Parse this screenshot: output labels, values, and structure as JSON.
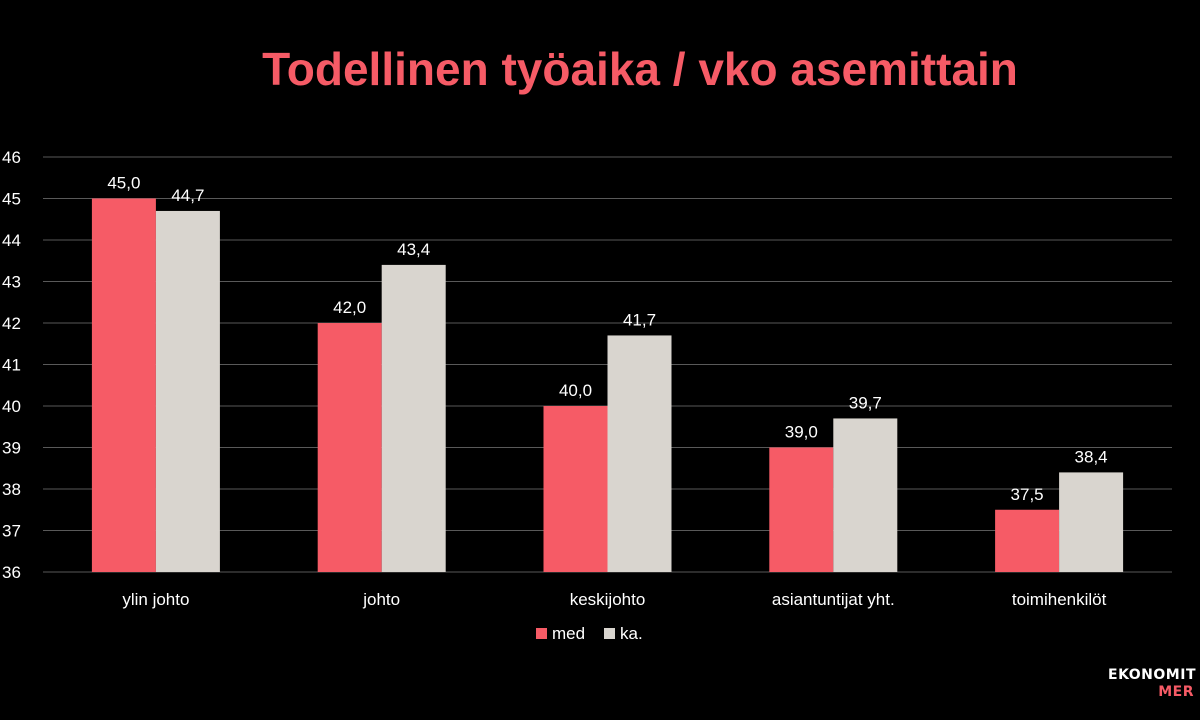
{
  "colors": {
    "background": "#000000",
    "title": "#f65b66",
    "text": "#ffffff",
    "grid": "#595959",
    "series_med": "#f65b66",
    "series_ka": "#d9d5cf"
  },
  "chart_data": {
    "type": "bar",
    "title": "Todellinen työaika / vko asemittain",
    "xlabel": "",
    "ylabel": "",
    "categories": [
      "ylin johto",
      "johto",
      "keskijohto",
      "asiantuntijat yht.",
      "toimihenkilöt"
    ],
    "series": [
      {
        "name": "med",
        "values": [
          45.0,
          42.0,
          40.0,
          39.0,
          37.5
        ],
        "labels": [
          "45,0",
          "42,0",
          "40,0",
          "39,0",
          "37,5"
        ]
      },
      {
        "name": "ka.",
        "values": [
          44.7,
          43.4,
          41.7,
          39.7,
          38.4
        ],
        "labels": [
          "44,7",
          "43,4",
          "41,7",
          "39,7",
          "38,4"
        ]
      }
    ],
    "ylim": [
      36,
      46
    ],
    "yticks": [
      "36",
      "37",
      "38",
      "39",
      "40",
      "41",
      "42",
      "43",
      "44",
      "45",
      "46"
    ],
    "grid": true,
    "legend_position": "bottom"
  },
  "logo": {
    "line1": "EKONOMIT",
    "line2": "MER"
  }
}
